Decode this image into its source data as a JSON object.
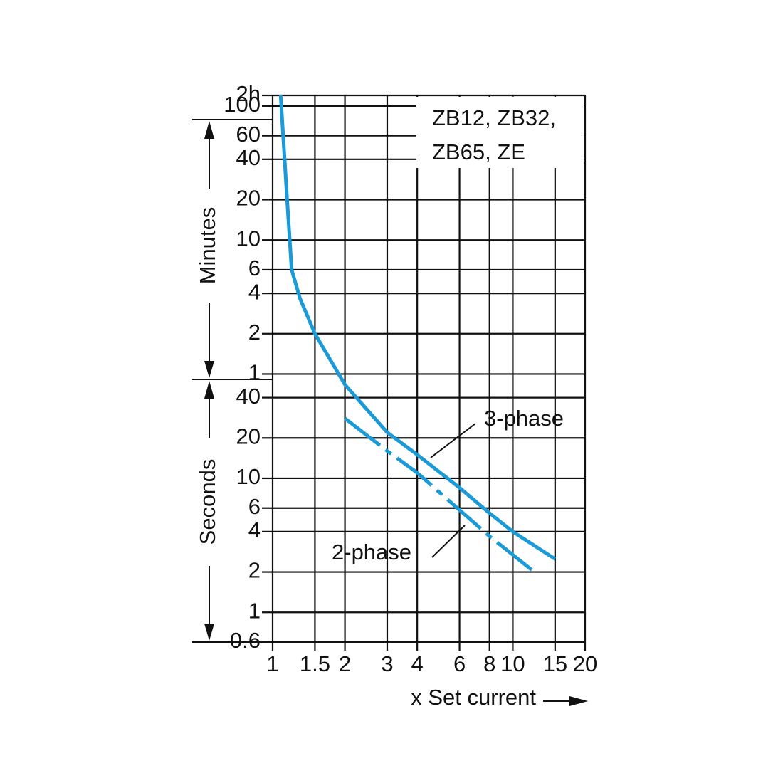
{
  "chart_data": {
    "type": "line",
    "title_lines": [
      "ZB12, ZB32,",
      "ZB65, ZE"
    ],
    "x_label": "x Set current",
    "y_group_labels": [
      "Minutes",
      "Seconds"
    ],
    "log_x": true,
    "log_y": true,
    "grid": true,
    "xlim": [
      1,
      20
    ],
    "xticks": [
      1,
      1.5,
      2,
      3,
      4,
      6,
      8,
      10,
      15,
      20
    ],
    "ylim": [
      0.6,
      7200
    ],
    "yticks": [
      {
        "value": 7200,
        "label": "2h"
      },
      {
        "value": 6000,
        "label": "100"
      },
      {
        "value": 3600,
        "label": "60"
      },
      {
        "value": 2400,
        "label": "40"
      },
      {
        "value": 1200,
        "label": "20"
      },
      {
        "value": 600,
        "label": "10"
      },
      {
        "value": 360,
        "label": "6"
      },
      {
        "value": 240,
        "label": "4"
      },
      {
        "value": 120,
        "label": "2"
      },
      {
        "value": 60,
        "label": "1"
      },
      40,
      20,
      10,
      6,
      4,
      2,
      1,
      0.6
    ],
    "series": [
      {
        "name": "3-phase",
        "color": "#1a9ad6",
        "style": "solid",
        "x": [
          1.08,
          1.14,
          1.2,
          1.3,
          1.5,
          2,
          3,
          4,
          6,
          8,
          10,
          15
        ],
        "values": [
          7200,
          1500,
          360,
          220,
          120,
          50,
          22,
          15,
          8.5,
          5.5,
          4,
          2.5
        ]
      },
      {
        "name": "2-phase",
        "color": "#1a9ad6",
        "style": "dashdot",
        "x": [
          2,
          3,
          4,
          6,
          8,
          12.3
        ],
        "values": [
          28,
          16,
          11,
          5.8,
          3.7,
          2
        ]
      }
    ]
  }
}
